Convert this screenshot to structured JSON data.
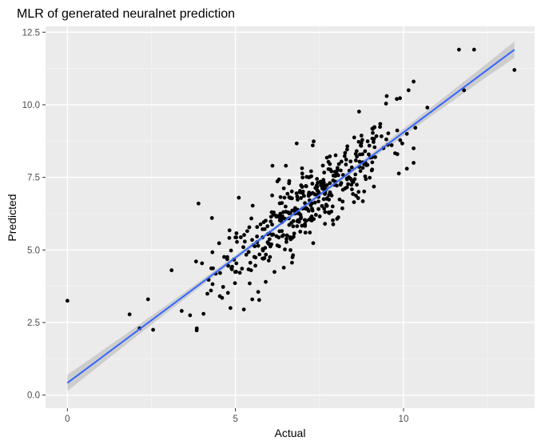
{
  "chart_data": {
    "type": "scatter",
    "title": "MLR of generated neuralnet prediction",
    "xlabel": "Actual",
    "ylabel": "Predicted",
    "xlim": [
      -0.65,
      13.9
    ],
    "ylim": [
      -0.45,
      12.7
    ],
    "x_ticks": [
      0,
      5,
      10
    ],
    "x_tick_labels": [
      "0",
      "5",
      "10"
    ],
    "y_ticks": [
      0.0,
      2.5,
      5.0,
      7.5,
      10.0,
      12.5
    ],
    "y_tick_labels": [
      "0.0",
      "2.5",
      "5.0",
      "7.5",
      "10.0",
      "12.5"
    ],
    "grid": true,
    "legend": "none",
    "colors": {
      "panel": "#ebebeb",
      "grid_major": "#ffffff",
      "points": "#000000",
      "fit_line": "#3366ff",
      "confidence_band": "#c8c8c8"
    },
    "fit_line": {
      "x": [
        0.0,
        13.3
      ],
      "y": [
        0.42,
        11.9
      ],
      "ci_halfwidth_ends": 0.28,
      "ci_halfwidth_center": 0.07
    },
    "outlier_points": [
      [
        0.0,
        3.25
      ],
      [
        1.85,
        2.78
      ],
      [
        2.15,
        2.3
      ],
      [
        2.4,
        3.3
      ],
      [
        2.55,
        2.25
      ],
      [
        3.1,
        4.3
      ],
      [
        3.4,
        2.9
      ],
      [
        3.65,
        2.75
      ],
      [
        3.85,
        2.3
      ],
      [
        3.9,
        6.6
      ],
      [
        4.05,
        2.8
      ],
      [
        4.3,
        6.1
      ],
      [
        4.85,
        3.0
      ],
      [
        5.1,
        6.8
      ],
      [
        5.25,
        2.95
      ],
      [
        11.65,
        11.9
      ],
      [
        12.1,
        11.9
      ],
      [
        13.3,
        11.2
      ],
      [
        11.8,
        10.5
      ],
      [
        9.5,
        10.3
      ],
      [
        9.8,
        10.2
      ],
      [
        10.15,
        10.5
      ],
      [
        10.3,
        10.8
      ],
      [
        10.1,
        7.8
      ],
      [
        10.3,
        8.0
      ],
      [
        10.3,
        8.5
      ],
      [
        10.1,
        9.0
      ],
      [
        6.1,
        7.9
      ],
      [
        6.5,
        7.9
      ],
      [
        7.3,
        8.6
      ],
      [
        5.5,
        3.3
      ],
      [
        5.9,
        3.9
      ]
    ],
    "cloud_points": 410,
    "cloud_seed": 12345,
    "cloud_noise": 0.62
  }
}
